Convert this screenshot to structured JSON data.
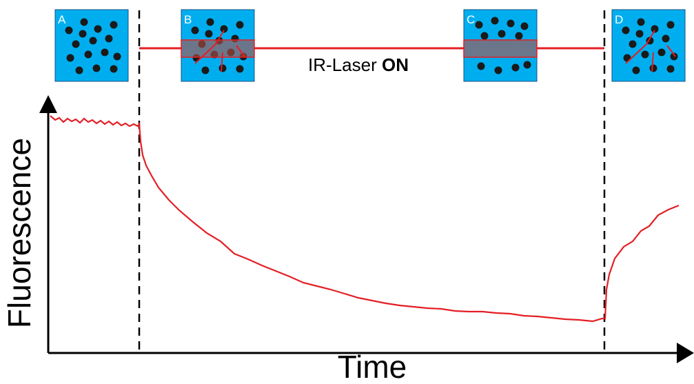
{
  "panels": [
    {
      "label": "A"
    },
    {
      "label": "B"
    },
    {
      "label": "C"
    },
    {
      "label": "D"
    }
  ],
  "laser": {
    "label": "IR-Laser",
    "emphasis": "ON"
  },
  "axes": {
    "y_label": "Fluorescence",
    "x_label": "Time"
  }
}
